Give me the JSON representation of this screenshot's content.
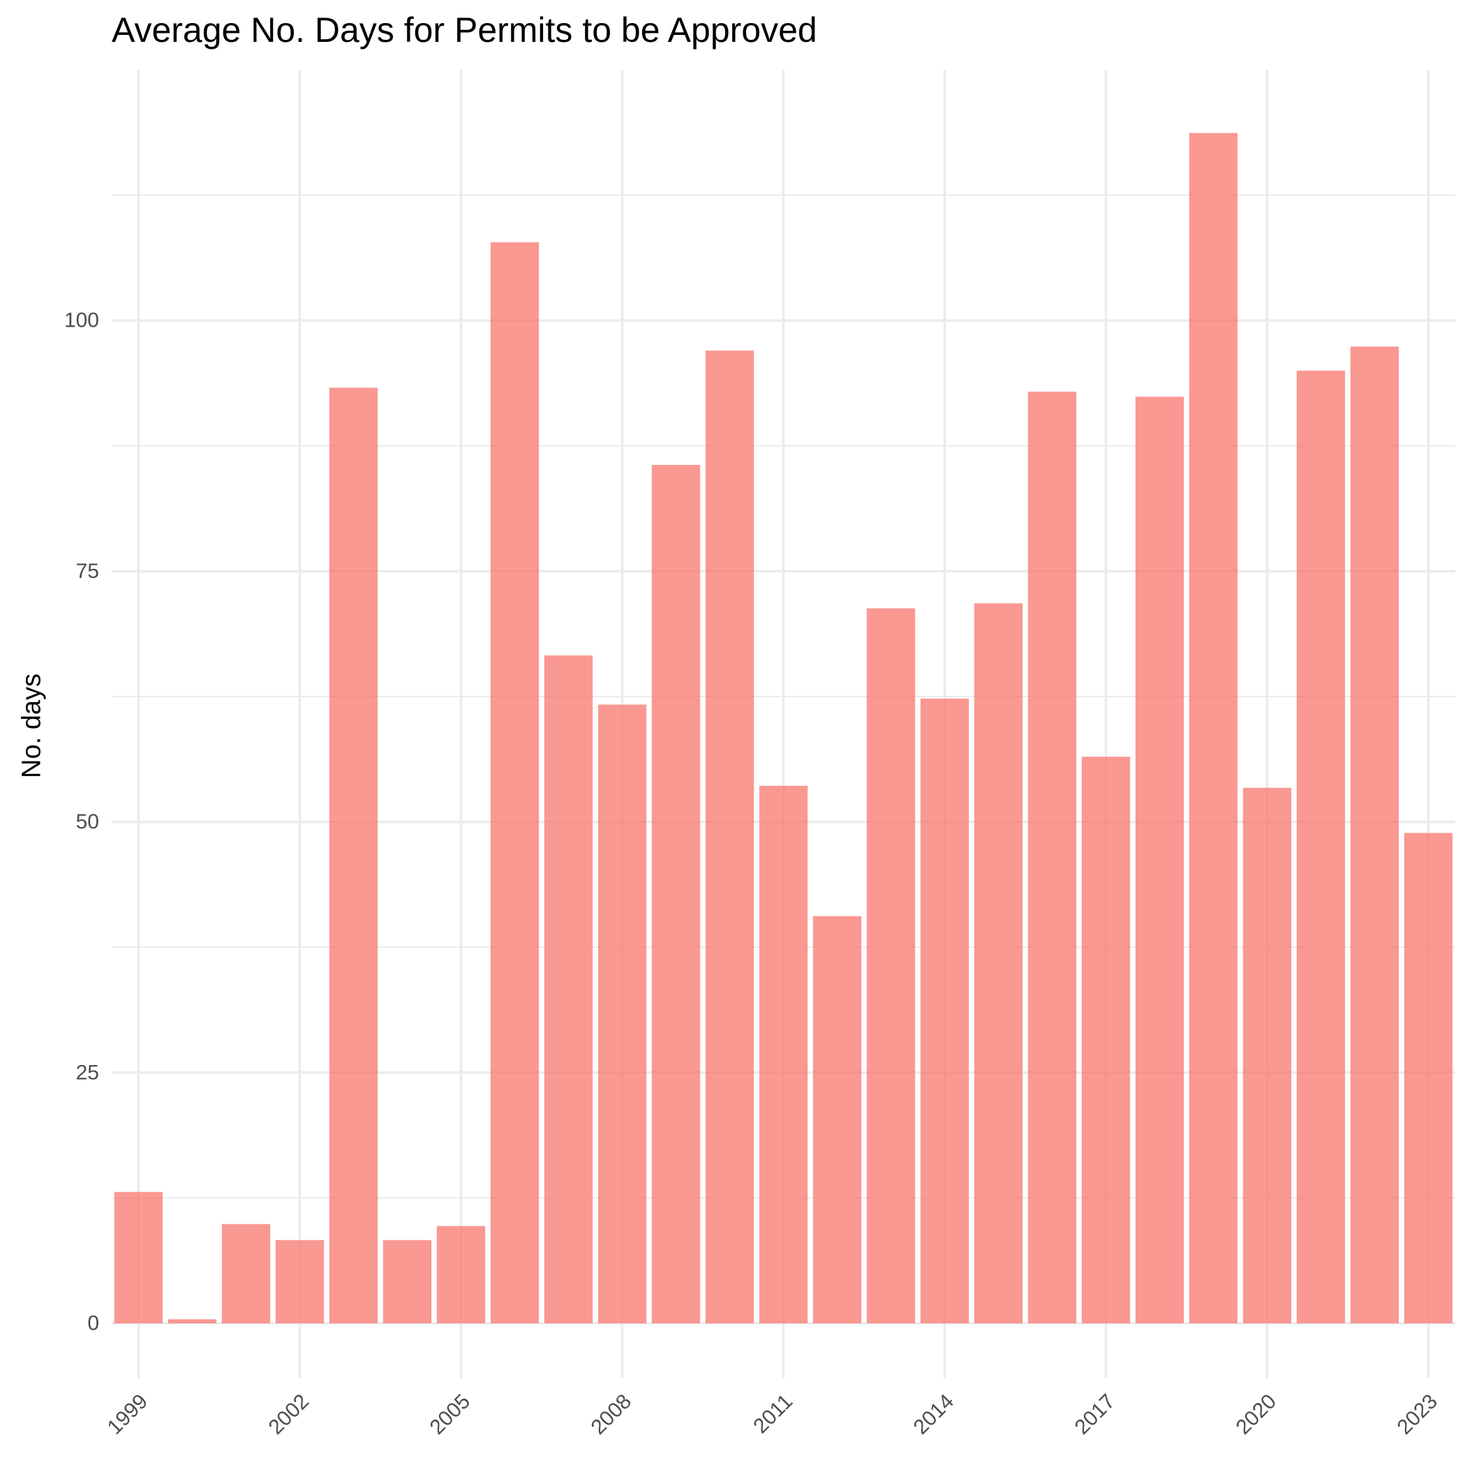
{
  "chart_data": {
    "type": "bar",
    "title": "Average No. Days for Permits to be Approved",
    "xlabel": "",
    "ylabel": "No. days",
    "x": [
      1999,
      2000,
      2001,
      2002,
      2003,
      2004,
      2005,
      2006,
      2007,
      2008,
      2009,
      2010,
      2011,
      2012,
      2013,
      2014,
      2015,
      2016,
      2017,
      2018,
      2019,
      2020,
      2021,
      2022,
      2023
    ],
    "values": [
      13.1,
      0.4,
      9.9,
      8.3,
      93.3,
      8.3,
      9.7,
      107.8,
      66.6,
      61.7,
      85.6,
      97.0,
      53.6,
      40.6,
      71.3,
      62.3,
      71.8,
      92.9,
      56.5,
      92.4,
      118.7,
      53.4,
      95.0,
      97.4,
      48.9
    ],
    "x_ticks": [
      "1999",
      "2002",
      "2005",
      "2008",
      "2011",
      "2014",
      "2017",
      "2020",
      "2023"
    ],
    "y_ticks": [
      "0",
      "25",
      "50",
      "75",
      "100"
    ],
    "ylim": [
      -5.5,
      125
    ],
    "grid": true,
    "bar_color": "#F8766D"
  }
}
